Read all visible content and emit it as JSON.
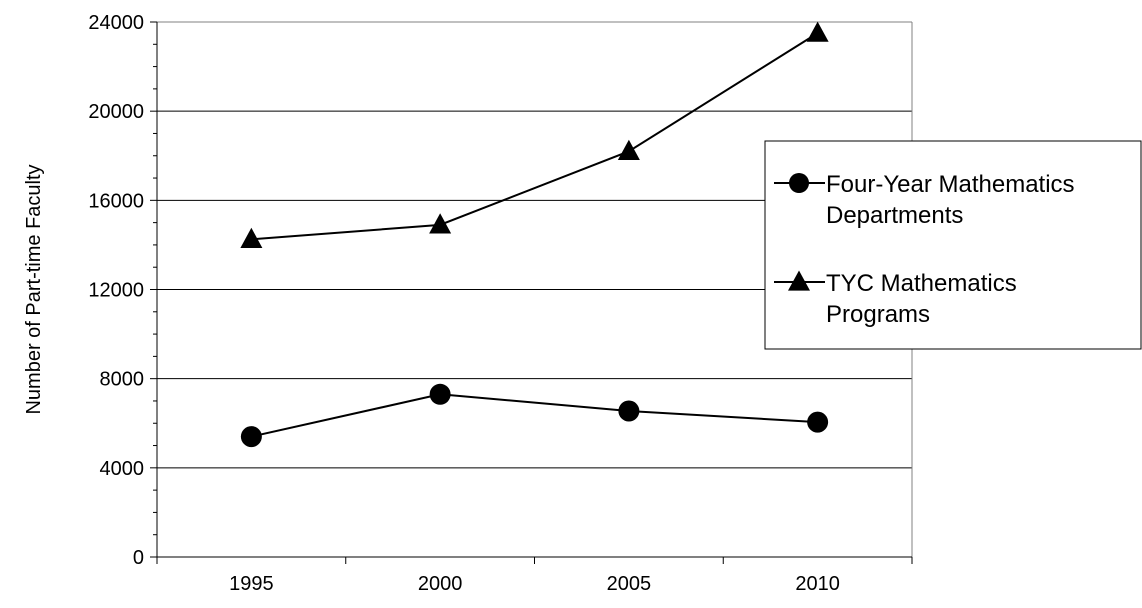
{
  "chart_data": {
    "type": "line",
    "title": "",
    "xlabel": "",
    "ylabel": "Number of Part-time Faculty",
    "x": [
      "1995",
      "2000",
      "2005",
      "2010"
    ],
    "ylim": [
      0,
      24000
    ],
    "y_ticks": [
      "0",
      "4000",
      "8000",
      "12000",
      "16000",
      "20000",
      "24000"
    ],
    "grid": true,
    "legend_position": "right",
    "series": [
      {
        "name": "Four-Year Mathematics Departments",
        "legend_lines": [
          "Four-Year Mathematics",
          "Departments"
        ],
        "marker": "circle",
        "values": [
          5400,
          7300,
          6550,
          6050
        ]
      },
      {
        "name": "TYC Mathematics Programs",
        "legend_lines": [
          "TYC Mathematics",
          "Programs"
        ],
        "marker": "triangle",
        "values": [
          14250,
          14900,
          18200,
          23500
        ]
      }
    ],
    "colors": {
      "line": "#000000",
      "grid": "#000000",
      "background": "#ffffff"
    }
  }
}
